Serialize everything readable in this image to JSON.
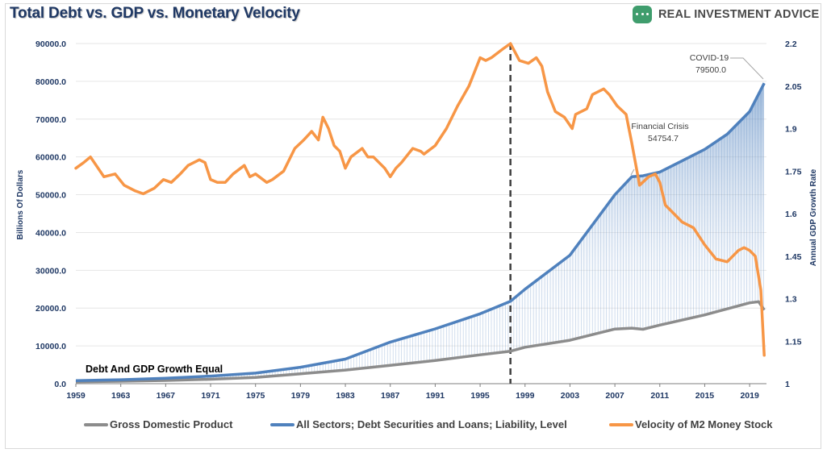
{
  "title": "Total Debt vs. GDP vs. Monetary Velocity",
  "brand": {
    "name": "REAL INVESTMENT ADVICE",
    "logo_icon": "chat-bubble-icon",
    "color": "#3f9d6d"
  },
  "legend": {
    "gdp": "Gross Domestic Product",
    "debt": "All Sectors; Debt Securities and Loans; Liability, Level",
    "velocity": "Velocity of M2 Money Stock"
  },
  "annotations": {
    "covid_label": "COVID-19",
    "covid_value": "79500.0",
    "crisis_label": "Financial Crisis",
    "crisis_value": "54754.7",
    "equal_label": "Debt And GDP Growth Equal"
  },
  "chart_data": {
    "type": "line",
    "title": "Total Debt vs. GDP vs. Monetary Velocity",
    "xlabel": "",
    "ylabel": "Billions Of Dollars",
    "y2label": "Annual GDP Growth Rate",
    "xlim": [
      1959,
      2020.5
    ],
    "ylim": [
      0,
      90000
    ],
    "y2lim": [
      1,
      2.2
    ],
    "x_ticks": [
      "1959",
      "1963",
      "1967",
      "1971",
      "1975",
      "1979",
      "1983",
      "1987",
      "1991",
      "1995",
      "1999",
      "2003",
      "2007",
      "2011",
      "2015",
      "2019"
    ],
    "y_ticks": [
      "0.0",
      "10000.0",
      "20000.0",
      "30000.0",
      "40000.0",
      "50000.0",
      "60000.0",
      "70000.0",
      "80000.0",
      "90000.0"
    ],
    "y2_ticks": [
      "1",
      "1.15",
      "1.3",
      "1.45",
      "1.6",
      "1.75",
      "1.9",
      "2.05",
      "2.2"
    ],
    "vertical_marker_year": 1997.7,
    "colors": {
      "gdp": "#8c8c8c",
      "debt": "#4f81bd",
      "velocity": "#f79646",
      "marker": "#404040"
    },
    "series": [
      {
        "name": "Gross Domestic Product",
        "axis": "left",
        "x": [
          1959,
          1963,
          1967,
          1971,
          1975,
          1979,
          1983,
          1987,
          1991,
          1995,
          1997.7,
          1999,
          2003,
          2007,
          2008.5,
          2009.5,
          2011,
          2015,
          2019,
          2019.8,
          2020.3
        ],
        "values": [
          506,
          639,
          862,
          1167,
          1640,
          2630,
          3600,
          4870,
          6150,
          7640,
          8600,
          9630,
          11500,
          14450,
          14700,
          14400,
          15500,
          18200,
          21400,
          21700,
          19500
        ]
      },
      {
        "name": "All Sectors; Debt Securities and Loans; Liability, Level",
        "axis": "left",
        "x": [
          1959,
          1963,
          1967,
          1971,
          1975,
          1979,
          1983,
          1987,
          1991,
          1995,
          1997.7,
          1999,
          2003,
          2007,
          2008.5,
          2009.5,
          2011,
          2013,
          2015,
          2017,
          2019,
          2020.3
        ],
        "values": [
          800,
          1050,
          1450,
          2000,
          2800,
          4350,
          6500,
          11000,
          14500,
          18500,
          21800,
          25000,
          34000,
          50000,
          54754.7,
          55000,
          56000,
          59000,
          62000,
          66000,
          72000,
          79500
        ]
      },
      {
        "name": "Velocity of M2 Money Stock",
        "axis": "right",
        "x": [
          1959,
          1959.7,
          1960.3,
          1961.5,
          1962.5,
          1963.3,
          1964.3,
          1965,
          1966,
          1966.8,
          1967.5,
          1968.3,
          1969,
          1970,
          1970.5,
          1971,
          1971.6,
          1972.3,
          1973,
          1974,
          1974.5,
          1975,
          1976,
          1976.5,
          1977.5,
          1978.5,
          1979.3,
          1980,
          1980.6,
          1981,
          1981.5,
          1982,
          1982.5,
          1983,
          1983.5,
          1984.5,
          1985,
          1985.5,
          1986.5,
          1987,
          1987.5,
          1988,
          1989,
          1989.7,
          1990,
          1991,
          1992,
          1993,
          1994,
          1995,
          1995.5,
          1996,
          1997,
          1997.7,
          1998.5,
          1999.3,
          2000,
          2000.5,
          2001,
          2001.7,
          2002.5,
          2003.2,
          2003.5,
          2004.5,
          2005,
          2006,
          2006.5,
          2007.2,
          2008,
          2008.5,
          2009.2,
          2010,
          2010.6,
          2011,
          2011.5,
          2012,
          2013,
          2014,
          2015,
          2016,
          2017,
          2018,
          2018.5,
          2019,
          2019.5,
          2020,
          2020.3
        ],
        "values": [
          1.76,
          1.78,
          1.8,
          1.73,
          1.74,
          1.7,
          1.68,
          1.67,
          1.69,
          1.72,
          1.71,
          1.74,
          1.77,
          1.79,
          1.78,
          1.72,
          1.71,
          1.71,
          1.74,
          1.77,
          1.73,
          1.74,
          1.71,
          1.72,
          1.75,
          1.83,
          1.86,
          1.89,
          1.86,
          1.94,
          1.9,
          1.84,
          1.82,
          1.76,
          1.8,
          1.83,
          1.8,
          1.8,
          1.76,
          1.73,
          1.76,
          1.78,
          1.83,
          1.82,
          1.81,
          1.84,
          1.9,
          1.98,
          2.05,
          2.15,
          2.14,
          2.15,
          2.18,
          2.2,
          2.14,
          2.13,
          2.15,
          2.12,
          2.03,
          1.96,
          1.94,
          1.9,
          1.95,
          1.97,
          2.02,
          2.04,
          2.02,
          1.98,
          1.95,
          1.85,
          1.7,
          1.73,
          1.74,
          1.71,
          1.63,
          1.61,
          1.57,
          1.55,
          1.49,
          1.44,
          1.43,
          1.47,
          1.48,
          1.47,
          1.45,
          1.33,
          1.1
        ]
      }
    ]
  }
}
